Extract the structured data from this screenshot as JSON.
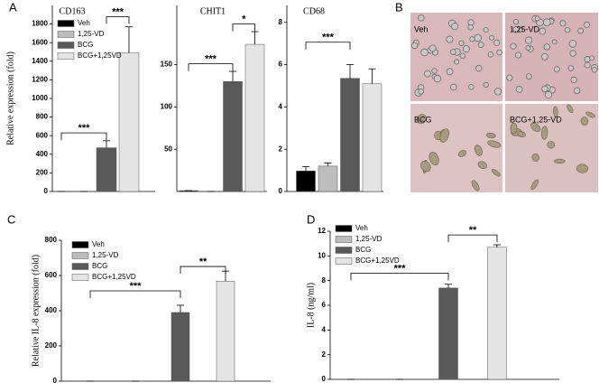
{
  "panel_labels": [
    "A",
    "B",
    "C",
    "D"
  ],
  "micrographs": [
    "Veh",
    "1,25-VD",
    "BCG",
    "BCG+1,25-VD"
  ],
  "chart_data": [
    {
      "type": "bar",
      "title": "CD163",
      "ylabel": "Relative expression (fold)",
      "ylim": [
        0,
        2000
      ],
      "yticks": [
        0,
        200,
        400,
        600,
        800,
        1000,
        1200,
        1400,
        1600,
        1800
      ],
      "series": [
        {
          "name": "Veh",
          "color": "#000000",
          "values": [
            0
          ],
          "errors": [
            0
          ]
        },
        {
          "name": "1,25-VD",
          "color": "#bdbdbd",
          "values": [
            0
          ],
          "errors": [
            0
          ]
        },
        {
          "name": "BCG",
          "color": "#595959",
          "values": [
            470
          ],
          "errors": [
            75
          ]
        },
        {
          "name": "BCG+1,25VD",
          "color": "#e4e4e4",
          "values": [
            1490
          ],
          "errors": [
            280
          ]
        }
      ],
      "brackets": [
        {
          "from": 0,
          "to": 2,
          "y": 630,
          "label": "***"
        },
        {
          "from": 2,
          "to": 3,
          "y": 1880,
          "label": "***"
        }
      ]
    },
    {
      "type": "bar",
      "title": "CHIT1",
      "ylim": [
        0,
        220
      ],
      "yticks": [
        50,
        100,
        150
      ],
      "series": [
        {
          "color": "#000000",
          "values": [
            1
          ],
          "errors": [
            0
          ]
        },
        {
          "color": "#bdbdbd",
          "values": [
            0
          ],
          "errors": [
            0
          ]
        },
        {
          "color": "#595959",
          "values": [
            130
          ],
          "errors": [
            12
          ]
        },
        {
          "color": "#e4e4e4",
          "values": [
            174
          ],
          "errors": [
            15
          ]
        }
      ],
      "brackets": [
        {
          "from": 0,
          "to": 2,
          "y": 151,
          "label": "***"
        },
        {
          "from": 2,
          "to": 3,
          "y": 198,
          "label": "*"
        }
      ]
    },
    {
      "type": "bar",
      "title": "CD68",
      "ylim": [
        0,
        8.8
      ],
      "yticks": [
        0,
        2,
        4,
        6,
        8
      ],
      "series": [
        {
          "color": "#000000",
          "values": [
            0.97
          ],
          "errors": [
            0.2
          ]
        },
        {
          "color": "#bdbdbd",
          "values": [
            1.2
          ],
          "errors": [
            0.15
          ]
        },
        {
          "color": "#595959",
          "values": [
            5.35
          ],
          "errors": [
            0.65
          ]
        },
        {
          "color": "#e4e4e4",
          "values": [
            5.1
          ],
          "errors": [
            0.7
          ]
        }
      ],
      "brackets": [
        {
          "from": 0,
          "to": 2,
          "y": 7.06,
          "label": "***"
        }
      ]
    },
    {
      "type": "bar",
      "ylabel": "Relative  IL-8 expression (fold)",
      "ylim": [
        0,
        800
      ],
      "yticks": [
        0,
        200,
        400,
        600,
        800
      ],
      "series": [
        {
          "name": "Veh",
          "color": "#000000",
          "values": [
            0
          ],
          "errors": [
            0
          ]
        },
        {
          "name": "1,25-VD",
          "color": "#bdbdbd",
          "values": [
            0
          ],
          "errors": [
            0
          ]
        },
        {
          "name": "BCG",
          "color": "#595959",
          "values": [
            390
          ],
          "errors": [
            41
          ]
        },
        {
          "name": "BCG+1,25VD",
          "color": "#e4e4e4",
          "values": [
            568
          ],
          "errors": [
            57
          ]
        }
      ],
      "brackets": [
        {
          "from": 0,
          "to": 2,
          "y": 513,
          "label": "***"
        },
        {
          "from": 2,
          "to": 3,
          "y": 651,
          "label": "**"
        }
      ]
    },
    {
      "type": "bar",
      "ylabel": "IL-8 (ng/ml)",
      "ylim": [
        0,
        12
      ],
      "yticks": [
        0,
        2,
        4,
        6,
        8,
        10,
        12
      ],
      "series": [
        {
          "name": "Veh",
          "color": "#000000",
          "values": [
            0
          ],
          "errors": [
            0
          ]
        },
        {
          "name": "1,25-VD",
          "color": "#bdbdbd",
          "values": [
            0
          ],
          "errors": [
            0
          ]
        },
        {
          "name": "BCG",
          "color": "#595959",
          "values": [
            7.4
          ],
          "errors": [
            0.3
          ]
        },
        {
          "name": "BCG+1,25VD",
          "color": "#e4e4e4",
          "values": [
            10.7
          ],
          "errors": [
            0.2
          ]
        }
      ],
      "brackets": [
        {
          "from": 0,
          "to": 2,
          "y": 8.6,
          "label": "***"
        },
        {
          "from": 2,
          "to": 3,
          "y": 11.7,
          "label": "**"
        }
      ]
    }
  ]
}
